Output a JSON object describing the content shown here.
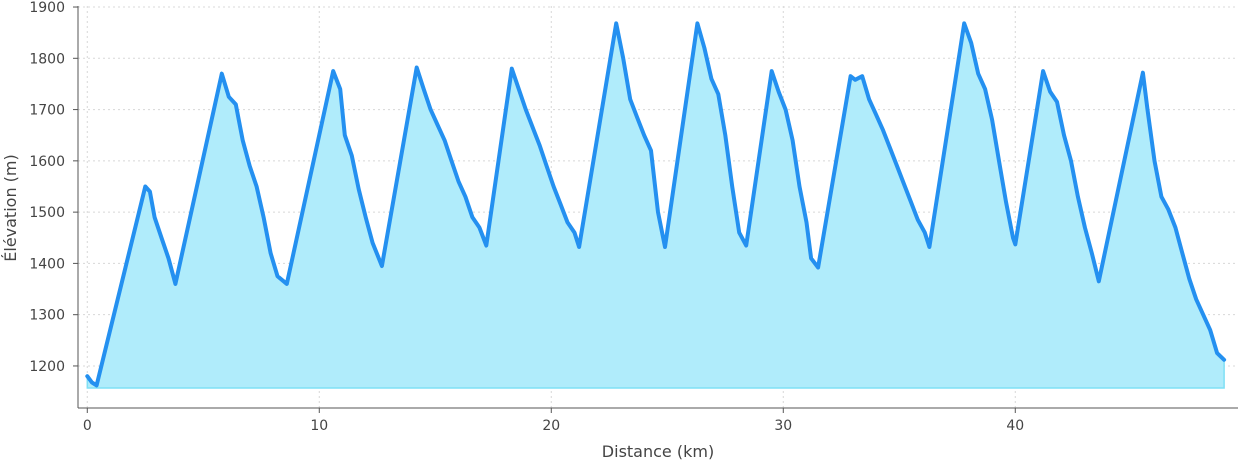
{
  "chart_data": {
    "type": "area",
    "title": "",
    "xlabel": "Distance (km)",
    "ylabel": "Élévation (m)",
    "xlim": [
      -0.4,
      49.6
    ],
    "ylim": [
      1118,
      1902
    ],
    "fill_baseline": 1157,
    "grid": true,
    "x_ticks": [
      0,
      10,
      20,
      30,
      40
    ],
    "y_ticks": [
      1200,
      1300,
      1400,
      1500,
      1600,
      1700,
      1800,
      1900
    ],
    "colors": {
      "line": "#2490f0",
      "fill": "#b0ecfb",
      "fill_edge": "#7fe0f5"
    },
    "series": [
      {
        "points": [
          [
            0,
            1180
          ],
          [
            0.2,
            1168
          ],
          [
            0.4,
            1162
          ],
          [
            2.5,
            1550
          ],
          [
            2.7,
            1540
          ],
          [
            2.9,
            1490
          ],
          [
            3.2,
            1450
          ],
          [
            3.5,
            1410
          ],
          [
            3.8,
            1360
          ],
          [
            5.8,
            1770
          ],
          [
            6.1,
            1725
          ],
          [
            6.4,
            1710
          ],
          [
            6.7,
            1640
          ],
          [
            7.0,
            1590
          ],
          [
            7.3,
            1550
          ],
          [
            7.6,
            1490
          ],
          [
            7.9,
            1420
          ],
          [
            8.2,
            1375
          ],
          [
            8.6,
            1360
          ],
          [
            10.6,
            1775
          ],
          [
            10.9,
            1740
          ],
          [
            11.1,
            1650
          ],
          [
            11.4,
            1610
          ],
          [
            11.7,
            1545
          ],
          [
            12.0,
            1490
          ],
          [
            12.3,
            1440
          ],
          [
            12.7,
            1395
          ],
          [
            14.2,
            1782
          ],
          [
            14.5,
            1740
          ],
          [
            14.8,
            1700
          ],
          [
            15.1,
            1670
          ],
          [
            15.4,
            1640
          ],
          [
            15.7,
            1600
          ],
          [
            16.0,
            1560
          ],
          [
            16.3,
            1530
          ],
          [
            16.6,
            1490
          ],
          [
            16.9,
            1470
          ],
          [
            17.2,
            1435
          ],
          [
            18.3,
            1780
          ],
          [
            18.6,
            1740
          ],
          [
            18.9,
            1700
          ],
          [
            19.2,
            1665
          ],
          [
            19.5,
            1630
          ],
          [
            19.8,
            1590
          ],
          [
            20.1,
            1550
          ],
          [
            20.4,
            1515
          ],
          [
            20.7,
            1480
          ],
          [
            21.0,
            1460
          ],
          [
            21.2,
            1432
          ],
          [
            22.8,
            1868
          ],
          [
            23.1,
            1800
          ],
          [
            23.4,
            1720
          ],
          [
            23.7,
            1685
          ],
          [
            24.0,
            1650
          ],
          [
            24.3,
            1620
          ],
          [
            24.6,
            1500
          ],
          [
            24.9,
            1432
          ],
          [
            26.3,
            1868
          ],
          [
            26.6,
            1820
          ],
          [
            26.9,
            1760
          ],
          [
            27.2,
            1730
          ],
          [
            27.5,
            1650
          ],
          [
            27.8,
            1550
          ],
          [
            28.1,
            1460
          ],
          [
            28.4,
            1435
          ],
          [
            29.5,
            1775
          ],
          [
            29.8,
            1735
          ],
          [
            30.1,
            1700
          ],
          [
            30.4,
            1640
          ],
          [
            30.7,
            1550
          ],
          [
            31.0,
            1480
          ],
          [
            31.2,
            1410
          ],
          [
            31.5,
            1392
          ],
          [
            32.9,
            1765
          ],
          [
            33.1,
            1758
          ],
          [
            33.4,
            1765
          ],
          [
            33.7,
            1720
          ],
          [
            34.0,
            1690
          ],
          [
            34.3,
            1660
          ],
          [
            34.6,
            1625
          ],
          [
            34.9,
            1590
          ],
          [
            35.2,
            1555
          ],
          [
            35.5,
            1520
          ],
          [
            35.8,
            1485
          ],
          [
            36.1,
            1460
          ],
          [
            36.3,
            1432
          ],
          [
            37.8,
            1868
          ],
          [
            38.1,
            1830
          ],
          [
            38.4,
            1770
          ],
          [
            38.7,
            1740
          ],
          [
            39.0,
            1680
          ],
          [
            39.3,
            1600
          ],
          [
            39.6,
            1520
          ],
          [
            39.9,
            1450
          ],
          [
            40.0,
            1437
          ],
          [
            41.2,
            1775
          ],
          [
            41.5,
            1735
          ],
          [
            41.8,
            1715
          ],
          [
            42.1,
            1650
          ],
          [
            42.4,
            1600
          ],
          [
            42.7,
            1530
          ],
          [
            43.0,
            1470
          ],
          [
            43.3,
            1420
          ],
          [
            43.6,
            1365
          ],
          [
            45.5,
            1772
          ],
          [
            45.7,
            1700
          ],
          [
            46.0,
            1600
          ],
          [
            46.3,
            1530
          ],
          [
            46.6,
            1505
          ],
          [
            46.9,
            1470
          ],
          [
            47.2,
            1420
          ],
          [
            47.5,
            1370
          ],
          [
            47.8,
            1330
          ],
          [
            48.1,
            1300
          ],
          [
            48.4,
            1270
          ],
          [
            48.7,
            1225
          ],
          [
            49.0,
            1212
          ]
        ]
      }
    ]
  }
}
